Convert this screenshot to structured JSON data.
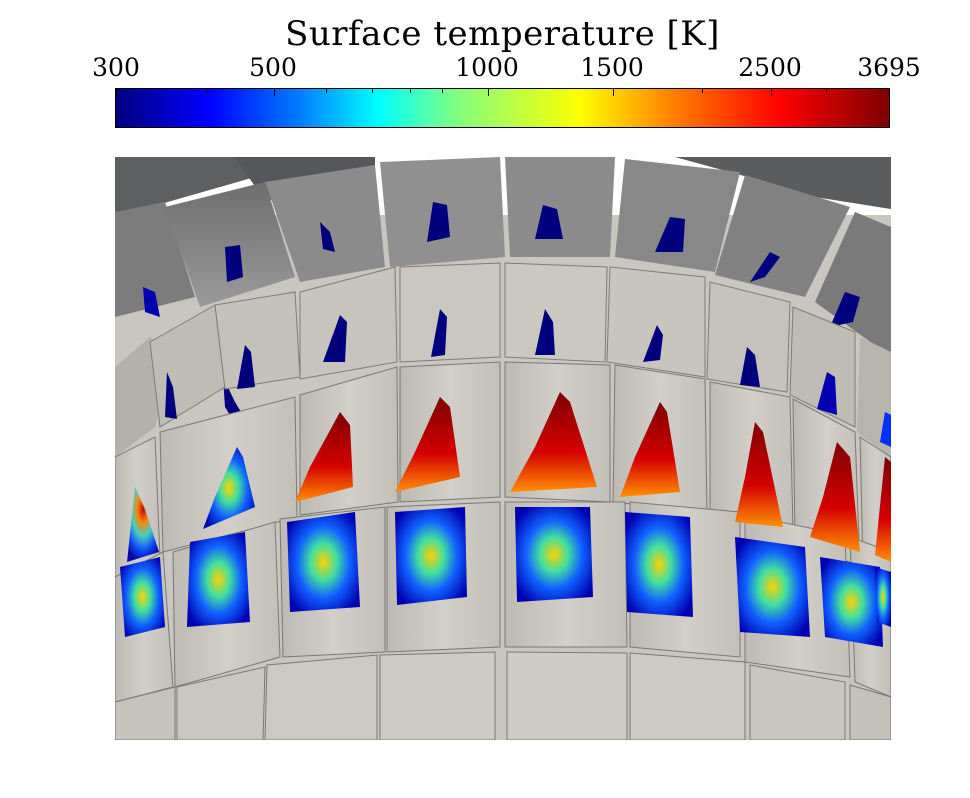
{
  "colorbar": {
    "title": "Surface temperature [K]",
    "ticks": [
      "300",
      "500",
      "1000",
      "1500",
      "2500",
      "3695"
    ],
    "tick_values": [
      300,
      500,
      1000,
      1500,
      2500,
      3695
    ],
    "min": 300,
    "max": 3695,
    "scale": "log",
    "colormap": "jet"
  },
  "colors": {
    "tile_light": "#c9c6bf",
    "tile_dark": "#8e8e8e",
    "tile_shadow": "#5a5a5a",
    "cold": "#00007f",
    "hot": "#7f0000"
  }
}
